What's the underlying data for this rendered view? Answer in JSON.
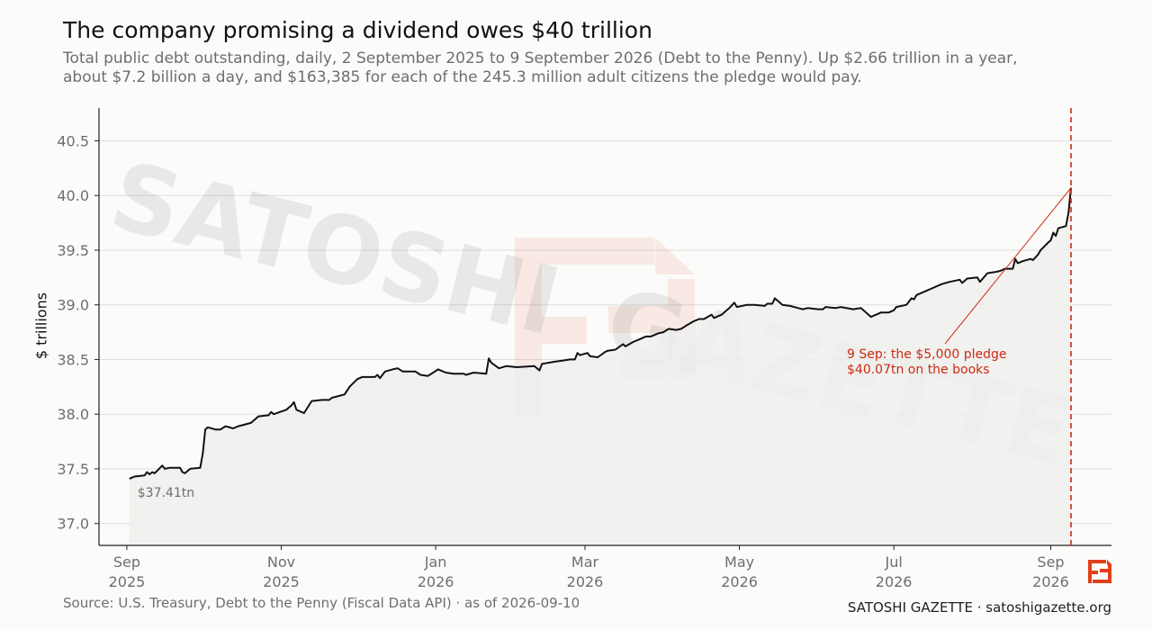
{
  "header": {
    "title": "The company promising a dividend owes $40 trillion",
    "subtitle": "Total public debt outstanding, daily, 2 September 2025 to 9 September 2026 (Debt to the Penny). Up $2.66 trillion in a year, about $7.2 billion a day, and $163,385 for each of the 245.3 million adult citizens the pledge would pay."
  },
  "footer": {
    "source": "Source: U.S. Treasury, Debt to the Penny (Fiscal Data API)  ·  as of 2026-09-10",
    "brand": "SATOSHI GAZETTE  ·  satoshigazette.org"
  },
  "watermark": {
    "text_a": "SATOSHI",
    "text_b": "GAZETTE"
  },
  "colors": {
    "line": "#111111",
    "fill": "#efefed",
    "accent": "#cc2a10",
    "grid": "#dddddd",
    "axis": "#222222"
  },
  "chart_data": {
    "type": "area",
    "ylabel": "$ trillions",
    "ylim": [
      36.8,
      40.8
    ],
    "yticks": [
      "37.0",
      "37.5",
      "38.0",
      "38.5",
      "39.0",
      "39.5",
      "40.0",
      "40.5"
    ],
    "xlim": [
      "2025-08-21",
      "2026-09-25"
    ],
    "xticks": [
      {
        "date": "2025-09-01",
        "label": "Sep",
        "year": "2025"
      },
      {
        "date": "2025-11-01",
        "label": "Nov",
        "year": "2025"
      },
      {
        "date": "2026-01-01",
        "label": "Jan",
        "year": "2026"
      },
      {
        "date": "2026-03-01",
        "label": "Mar",
        "year": "2026"
      },
      {
        "date": "2026-05-01",
        "label": "May",
        "year": "2026"
      },
      {
        "date": "2026-07-01",
        "label": "Jul",
        "year": "2026"
      },
      {
        "date": "2026-09-01",
        "label": "Sep",
        "year": "2026"
      }
    ],
    "grid": true,
    "series": [
      {
        "points": [
          [
            "2025-09-02",
            37.41
          ],
          [
            "2025-09-04",
            37.43
          ],
          [
            "2025-09-08",
            37.44
          ],
          [
            "2025-09-09",
            37.47
          ],
          [
            "2025-09-10",
            37.45
          ],
          [
            "2025-09-11",
            37.47
          ],
          [
            "2025-09-12",
            37.46
          ],
          [
            "2025-09-15",
            37.53
          ],
          [
            "2025-09-16",
            37.5
          ],
          [
            "2025-09-18",
            37.51
          ],
          [
            "2025-09-22",
            37.51
          ],
          [
            "2025-09-23",
            37.47
          ],
          [
            "2025-09-24",
            37.46
          ],
          [
            "2025-09-26",
            37.5
          ],
          [
            "2025-09-30",
            37.51
          ],
          [
            "2025-10-01",
            37.64
          ],
          [
            "2025-10-02",
            37.86
          ],
          [
            "2025-10-03",
            37.88
          ],
          [
            "2025-10-06",
            37.86
          ],
          [
            "2025-10-08",
            37.86
          ],
          [
            "2025-10-10",
            37.89
          ],
          [
            "2025-10-13",
            37.87
          ],
          [
            "2025-10-15",
            37.89
          ],
          [
            "2025-10-20",
            37.92
          ],
          [
            "2025-10-23",
            37.98
          ],
          [
            "2025-10-27",
            37.99
          ],
          [
            "2025-10-28",
            38.02
          ],
          [
            "2025-10-29",
            38.0
          ],
          [
            "2025-11-03",
            38.04
          ],
          [
            "2025-11-05",
            38.08
          ],
          [
            "2025-11-06",
            38.11
          ],
          [
            "2025-11-07",
            38.04
          ],
          [
            "2025-11-10",
            38.01
          ],
          [
            "2025-11-13",
            38.12
          ],
          [
            "2025-11-17",
            38.13
          ],
          [
            "2025-11-20",
            38.13
          ],
          [
            "2025-11-21",
            38.15
          ],
          [
            "2025-11-26",
            38.18
          ],
          [
            "2025-11-28",
            38.25
          ],
          [
            "2025-12-01",
            38.32
          ],
          [
            "2025-12-03",
            38.34
          ],
          [
            "2025-12-08",
            38.34
          ],
          [
            "2025-12-09",
            38.36
          ],
          [
            "2025-12-10",
            38.33
          ],
          [
            "2025-12-12",
            38.39
          ],
          [
            "2025-12-15",
            38.41
          ],
          [
            "2025-12-17",
            38.42
          ],
          [
            "2025-12-19",
            38.39
          ],
          [
            "2025-12-24",
            38.39
          ],
          [
            "2025-12-26",
            38.36
          ],
          [
            "2025-12-29",
            38.35
          ],
          [
            "2026-01-02",
            38.41
          ],
          [
            "2026-01-05",
            38.38
          ],
          [
            "2026-01-08",
            38.37
          ],
          [
            "2026-01-12",
            38.37
          ],
          [
            "2026-01-13",
            38.36
          ],
          [
            "2026-01-16",
            38.38
          ],
          [
            "2026-01-21",
            38.37
          ],
          [
            "2026-01-22",
            38.51
          ],
          [
            "2026-01-23",
            38.47
          ],
          [
            "2026-01-26",
            38.42
          ],
          [
            "2026-01-29",
            38.44
          ],
          [
            "2026-02-02",
            38.43
          ],
          [
            "2026-02-09",
            38.44
          ],
          [
            "2026-02-11",
            38.4
          ],
          [
            "2026-02-12",
            38.46
          ],
          [
            "2026-02-17",
            38.48
          ],
          [
            "2026-02-20",
            38.49
          ],
          [
            "2026-02-23",
            38.5
          ],
          [
            "2026-02-25",
            38.5
          ],
          [
            "2026-02-26",
            38.56
          ],
          [
            "2026-02-27",
            38.54
          ],
          [
            "2026-03-02",
            38.56
          ],
          [
            "2026-03-03",
            38.53
          ],
          [
            "2026-03-06",
            38.52
          ],
          [
            "2026-03-09",
            38.57
          ],
          [
            "2026-03-10",
            38.58
          ],
          [
            "2026-03-13",
            38.59
          ],
          [
            "2026-03-16",
            38.64
          ],
          [
            "2026-03-17",
            38.62
          ],
          [
            "2026-03-20",
            38.66
          ],
          [
            "2026-03-23",
            38.69
          ],
          [
            "2026-03-25",
            38.71
          ],
          [
            "2026-03-27",
            38.71
          ],
          [
            "2026-03-30",
            38.74
          ],
          [
            "2026-04-01",
            38.75
          ],
          [
            "2026-04-03",
            38.78
          ],
          [
            "2026-04-06",
            38.77
          ],
          [
            "2026-04-08",
            38.78
          ],
          [
            "2026-04-10",
            38.81
          ],
          [
            "2026-04-13",
            38.85
          ],
          [
            "2026-04-15",
            38.87
          ],
          [
            "2026-04-17",
            38.87
          ],
          [
            "2026-04-20",
            38.91
          ],
          [
            "2026-04-21",
            38.88
          ],
          [
            "2026-04-24",
            38.91
          ],
          [
            "2026-04-27",
            38.97
          ],
          [
            "2026-04-29",
            39.02
          ],
          [
            "2026-04-30",
            38.98
          ],
          [
            "2026-05-04",
            39.0
          ],
          [
            "2026-05-07",
            39.0
          ],
          [
            "2026-05-11",
            38.99
          ],
          [
            "2026-05-12",
            39.01
          ],
          [
            "2026-05-14",
            39.01
          ],
          [
            "2026-05-15",
            39.06
          ],
          [
            "2026-05-18",
            39.0
          ],
          [
            "2026-05-21",
            38.99
          ],
          [
            "2026-05-26",
            38.96
          ],
          [
            "2026-05-28",
            38.97
          ],
          [
            "2026-06-01",
            38.96
          ],
          [
            "2026-06-03",
            38.96
          ],
          [
            "2026-06-04",
            38.98
          ],
          [
            "2026-06-08",
            38.97
          ],
          [
            "2026-06-10",
            38.98
          ],
          [
            "2026-06-15",
            38.96
          ],
          [
            "2026-06-18",
            38.97
          ],
          [
            "2026-06-22",
            38.89
          ],
          [
            "2026-06-23",
            38.9
          ],
          [
            "2026-06-26",
            38.93
          ],
          [
            "2026-06-29",
            38.93
          ],
          [
            "2026-07-01",
            38.95
          ],
          [
            "2026-07-02",
            38.98
          ],
          [
            "2026-07-06",
            39.0
          ],
          [
            "2026-07-08",
            39.06
          ],
          [
            "2026-07-09",
            39.05
          ],
          [
            "2026-07-10",
            39.09
          ],
          [
            "2026-07-14",
            39.13
          ],
          [
            "2026-07-16",
            39.15
          ],
          [
            "2026-07-20",
            39.19
          ],
          [
            "2026-07-23",
            39.21
          ],
          [
            "2026-07-27",
            39.23
          ],
          [
            "2026-07-28",
            39.2
          ],
          [
            "2026-07-30",
            39.24
          ],
          [
            "2026-08-03",
            39.25
          ],
          [
            "2026-08-04",
            39.21
          ],
          [
            "2026-08-07",
            39.29
          ],
          [
            "2026-08-10",
            39.3
          ],
          [
            "2026-08-12",
            39.31
          ],
          [
            "2026-08-14",
            39.33
          ],
          [
            "2026-08-17",
            39.33
          ],
          [
            "2026-08-18",
            39.42
          ],
          [
            "2026-08-19",
            39.38
          ],
          [
            "2026-08-21",
            39.4
          ],
          [
            "2026-08-24",
            39.42
          ],
          [
            "2026-08-25",
            39.41
          ],
          [
            "2026-08-27",
            39.46
          ],
          [
            "2026-08-28",
            39.5
          ],
          [
            "2026-08-31",
            39.57
          ],
          [
            "2026-09-01",
            39.59
          ],
          [
            "2026-09-02",
            39.66
          ],
          [
            "2026-09-03",
            39.63
          ],
          [
            "2026-09-04",
            39.7
          ],
          [
            "2026-09-07",
            39.72
          ],
          [
            "2026-09-08",
            39.84
          ],
          [
            "2026-09-09",
            40.07
          ]
        ]
      }
    ],
    "start_label": "$37.41tn",
    "marker": {
      "date": "2026-09-09",
      "value": 40.07
    },
    "annotation": {
      "line1": "9 Sep: the $5,000 pledge",
      "line2": "$40.07tn on the books"
    }
  }
}
